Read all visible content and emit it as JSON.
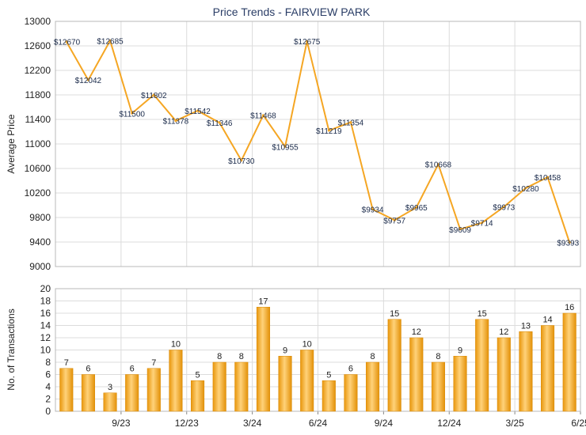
{
  "chart_data": [
    {
      "type": "line",
      "title": "Price Trends - FAIRVIEW PARK",
      "ylabel": "Average Price",
      "ylim": [
        9000,
        13000
      ],
      "yticks": [
        9000,
        9400,
        9800,
        10200,
        10600,
        11000,
        11400,
        11800,
        12200,
        12600,
        13000
      ],
      "grid": true,
      "line_color": "#f5a623",
      "values": [
        12670,
        12042,
        12685,
        11500,
        11802,
        11378,
        11542,
        11346,
        10730,
        11468,
        10955,
        12675,
        11219,
        11354,
        9934,
        9757,
        9965,
        10668,
        9609,
        9714,
        9973,
        10280,
        10458,
        9393
      ],
      "labels": [
        "$12670",
        "$12042",
        "$12685",
        "$11500",
        "$11802",
        "$11378",
        "$11542",
        "$11346",
        "$10730",
        "$11468",
        "$10955",
        "$12675",
        "$11219",
        "$11354",
        "$9934",
        "$9757",
        "$9965",
        "$10668",
        "$9609",
        "$9714",
        "$9973",
        "$10280",
        "$10458",
        "$9393"
      ]
    },
    {
      "type": "bar",
      "ylabel": "No. of Transactions",
      "ylim": [
        0,
        20
      ],
      "yticks": [
        0,
        2,
        4,
        6,
        8,
        10,
        12,
        14,
        16,
        18,
        20
      ],
      "grid": true,
      "bar_color": "#f0a820",
      "values": [
        7,
        6,
        3,
        6,
        7,
        10,
        5,
        8,
        8,
        17,
        9,
        10,
        5,
        6,
        8,
        15,
        12,
        8,
        9,
        15,
        12,
        13,
        14,
        16
      ],
      "xtick_labels": [
        {
          "index": 2,
          "label": "9/23"
        },
        {
          "index": 5,
          "label": "12/23"
        },
        {
          "index": 8,
          "label": "3/24"
        },
        {
          "index": 11,
          "label": "6/24"
        },
        {
          "index": 14,
          "label": "9/24"
        },
        {
          "index": 17,
          "label": "12/24"
        },
        {
          "index": 20,
          "label": "3/25"
        },
        {
          "index": 23,
          "label": "6/25"
        }
      ]
    }
  ]
}
